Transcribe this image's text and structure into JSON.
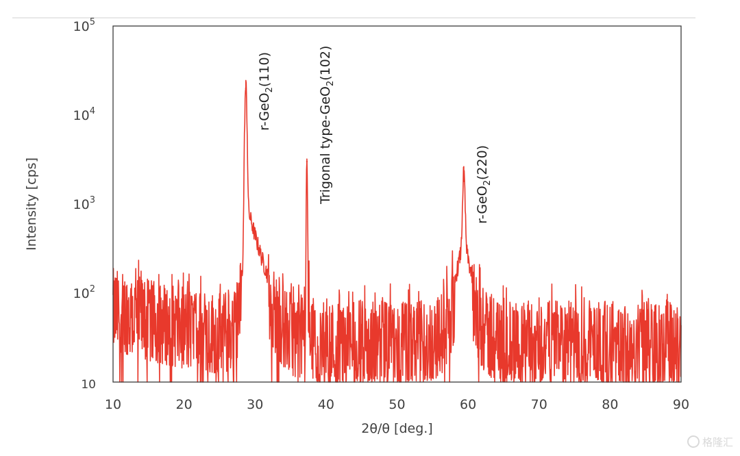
{
  "watermark": {
    "logo_icon": "gelonghui-logo-icon",
    "text": "格隆汇"
  },
  "chart_data": {
    "type": "line",
    "xlabel": "2θ/θ [deg.]",
    "ylabel": "Intensity [cps]",
    "xlim": [
      10,
      90
    ],
    "ylim": [
      10,
      100000
    ],
    "yscale": "log",
    "grid": false,
    "legend": "none",
    "x_ticks": [
      10,
      20,
      30,
      40,
      50,
      60,
      70,
      80,
      90
    ],
    "y_ticks": [
      {
        "value": 10,
        "base": "10",
        "exp": ""
      },
      {
        "value": 100,
        "base": "10",
        "exp": "2"
      },
      {
        "value": 1000,
        "base": "10",
        "exp": "3"
      },
      {
        "value": 10000,
        "base": "10",
        "exp": "4"
      },
      {
        "value": 100000,
        "base": "10",
        "exp": "5"
      }
    ],
    "line_color": "#e8392c",
    "peaks": [
      {
        "x": 28.7,
        "y": 20000,
        "label": "r-GeO",
        "sub": "2",
        "hkl": "(110)"
      },
      {
        "x": 37.3,
        "y": 3000,
        "label": "Trigonal type-GeO",
        "sub": "2",
        "hkl": "(102)"
      },
      {
        "x": 59.4,
        "y": 1800,
        "label": "r-GeO",
        "sub": "2",
        "hkl": "(220)"
      }
    ],
    "background_level": 45
  }
}
